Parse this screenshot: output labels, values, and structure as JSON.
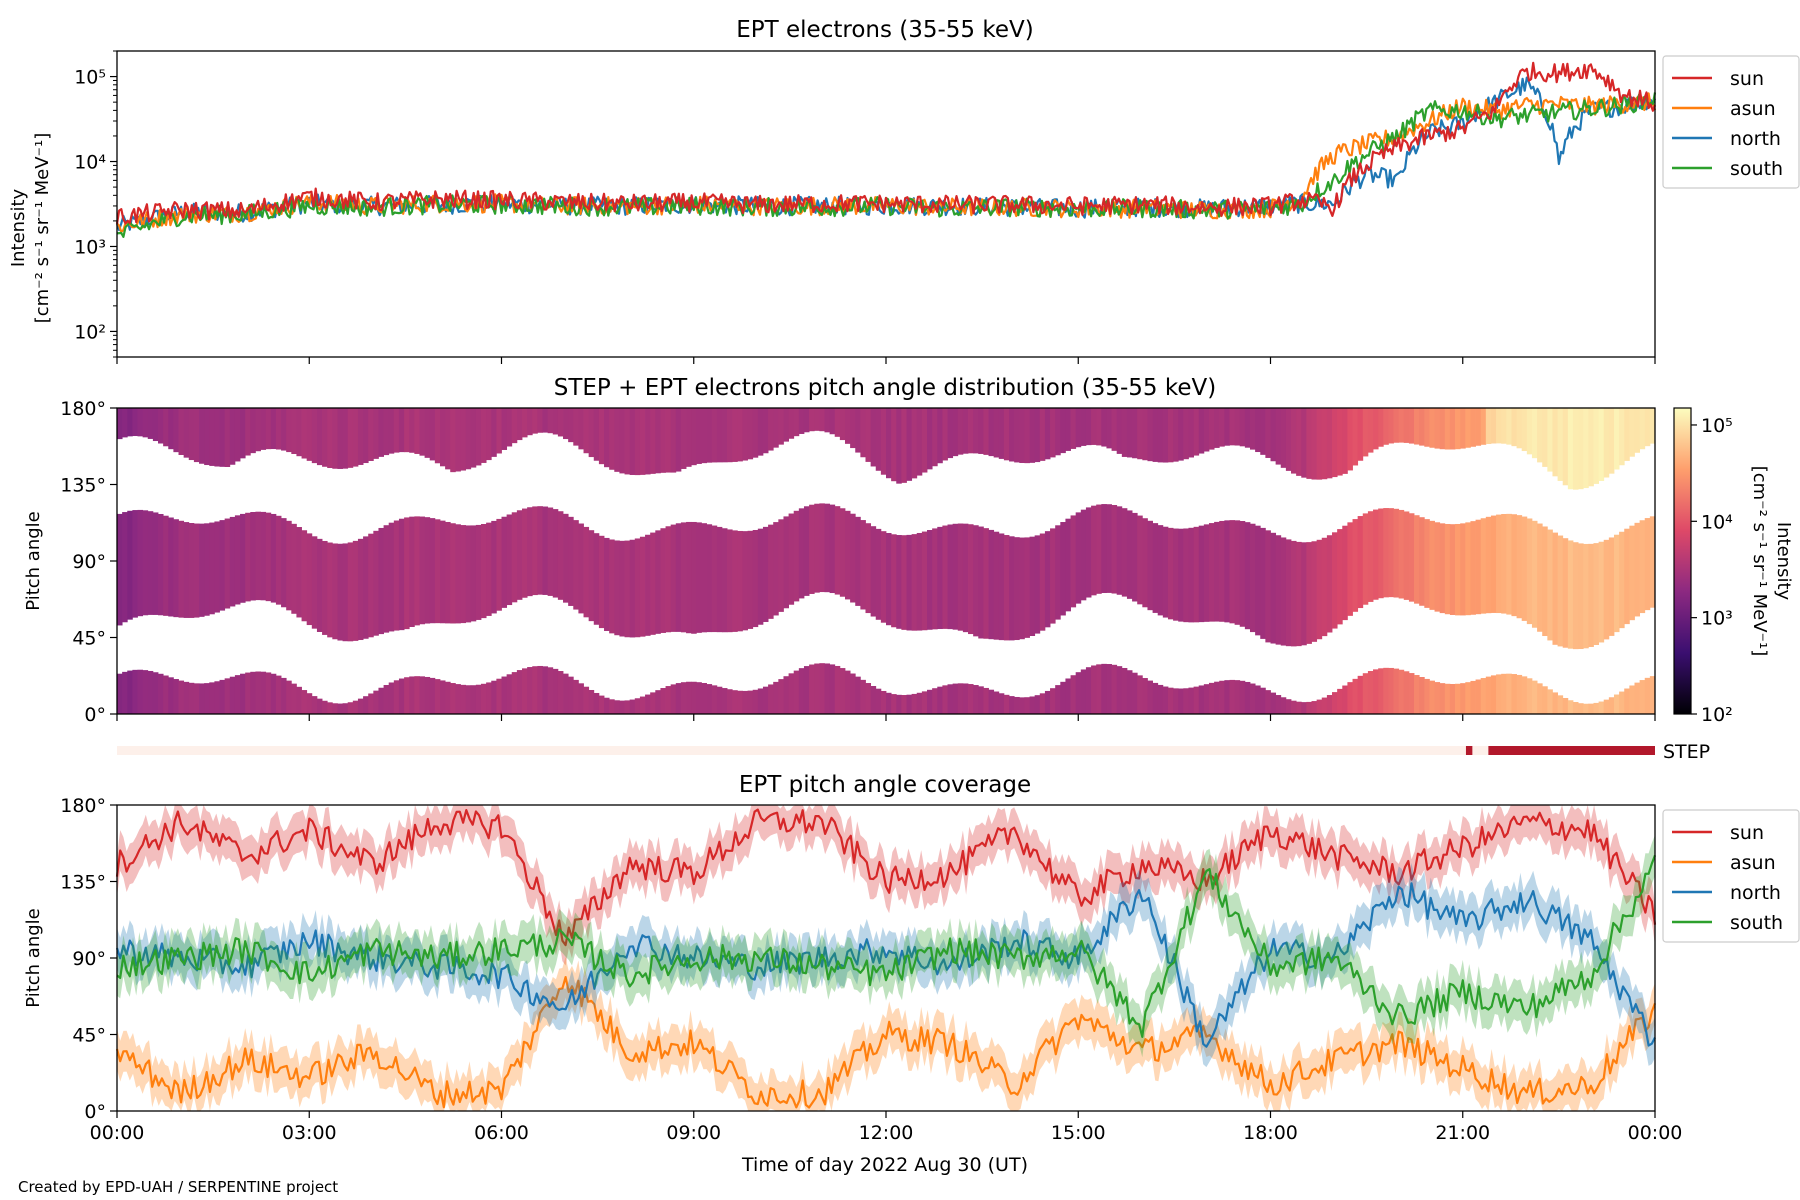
{
  "figure": {
    "credit": "Created by EPD-UAH / SERPENTINE project",
    "xlabel": "Time of day 2022 Aug 30 (UT)",
    "xticks": [
      "00:00",
      "03:00",
      "06:00",
      "09:00",
      "12:00",
      "15:00",
      "18:00",
      "21:00",
      "00:00"
    ]
  },
  "colors": {
    "sun": "#d62728",
    "asun": "#ff7f0e",
    "north": "#1f77b4",
    "south": "#2ca02c",
    "step_bar": "#b2182b",
    "step_bar_off": "#fdf0ea"
  },
  "chart_data": [
    {
      "type": "line",
      "title": "EPT electrons (35-55 keV)",
      "ylabel": "Intensity",
      "yunit": "[cm⁻² s⁻¹ sr⁻¹ MeV⁻¹]",
      "yscale": "log",
      "ylim": [
        50,
        200000
      ],
      "yticks": [
        "10²",
        "10³",
        "10⁴",
        "10⁵"
      ],
      "xlim_hours": [
        0,
        24
      ],
      "legend": "outside-right",
      "x_hours": [
        0,
        1,
        2,
        3,
        4,
        5,
        6,
        7,
        8,
        9,
        10,
        11,
        12,
        13,
        14,
        15,
        16,
        17,
        18,
        18.5,
        19,
        19.5,
        20,
        20.5,
        21,
        21.5,
        22,
        22.5,
        23,
        23.5,
        24
      ],
      "series": [
        {
          "name": "sun",
          "values": [
            2200,
            2700,
            2600,
            3800,
            3300,
            3600,
            3500,
            3300,
            3200,
            3300,
            3100,
            3200,
            3200,
            3100,
            3100,
            3000,
            3100,
            2900,
            3000,
            3500,
            2900,
            9000,
            15000,
            20000,
            24000,
            40000,
            115000,
            110000,
            125000,
            60000,
            48000
          ]
        },
        {
          "name": "asun",
          "values": [
            1700,
            2400,
            2500,
            3300,
            3000,
            3200,
            3200,
            3000,
            3000,
            3100,
            3000,
            3000,
            3000,
            2900,
            2900,
            2800,
            2800,
            2700,
            2800,
            3800,
            12000,
            16000,
            20000,
            30000,
            45000,
            40000,
            46000,
            47000,
            45000,
            48000,
            50000
          ]
        },
        {
          "name": "north",
          "values": [
            1700,
            2500,
            2500,
            3200,
            3000,
            3100,
            3200,
            3000,
            3000,
            3100,
            3000,
            3000,
            3000,
            3000,
            2900,
            2800,
            2900,
            2800,
            3000,
            3200,
            3200,
            7000,
            6000,
            22000,
            28000,
            50000,
            80000,
            10000,
            40000,
            45000,
            55000
          ]
        },
        {
          "name": "south",
          "values": [
            1300,
            2300,
            2400,
            3000,
            2900,
            3100,
            3100,
            3000,
            2900,
            3000,
            2900,
            2900,
            3000,
            2800,
            2900,
            2800,
            2800,
            2700,
            2800,
            3200,
            6000,
            12000,
            20000,
            40000,
            40000,
            32000,
            35000,
            38000,
            42000,
            46000,
            55000
          ]
        }
      ]
    },
    {
      "type": "heatmap",
      "title": "STEP + EPT electrons pitch angle distribution (35-55 keV)",
      "ylabel": "Pitch angle",
      "ylim_deg": [
        0,
        180
      ],
      "yticks": [
        "0°",
        "45°",
        "90°",
        "135°",
        "180°"
      ],
      "colorbar": {
        "label": "Intensity",
        "unit": "[cm⁻² s⁻¹ sr⁻¹ MeV⁻¹]",
        "scale": "log",
        "range": [
          100,
          150000
        ],
        "ticks": [
          "10²",
          "10³",
          "10⁴",
          "10⁵"
        ],
        "colors": [
          "#000004",
          "#3b0f70",
          "#8c2981",
          "#de4968",
          "#fe9f6d",
          "#fcfdbf"
        ]
      },
      "x_hours": [
        0,
        1,
        2,
        3,
        4,
        5,
        6,
        7,
        8,
        9,
        10,
        11,
        12,
        13,
        14,
        15,
        16,
        17,
        18,
        18.5,
        19,
        19.5,
        20,
        20.5,
        21,
        21.5,
        22,
        22.5,
        23,
        23.5,
        24
      ],
      "intensity": [
        1500,
        2500,
        2500,
        3200,
        3000,
        3200,
        3200,
        3000,
        3000,
        3100,
        3000,
        3000,
        3000,
        2900,
        2900,
        2800,
        2900,
        2800,
        2900,
        3500,
        6000,
        10000,
        15000,
        25000,
        30000,
        40000,
        50000,
        50000,
        55000,
        50000,
        50000
      ]
    },
    {
      "type": "bar",
      "label": "STEP",
      "segments_hours": [
        [
          21.05,
          21.15
        ],
        [
          21.4,
          24.0
        ]
      ]
    },
    {
      "type": "line",
      "title": "EPT pitch angle coverage",
      "ylabel": "Pitch angle",
      "ylim_deg": [
        0,
        180
      ],
      "yticks": [
        "0°",
        "45°",
        "90°",
        "135°",
        "180°"
      ],
      "band_width_deg": 12,
      "legend": "outside-right",
      "x_hours": [
        0,
        1,
        2,
        3,
        4,
        5,
        6,
        7,
        8,
        9,
        10,
        11,
        12,
        13,
        14,
        15,
        16,
        17,
        18,
        19,
        20,
        21,
        22,
        23,
        24
      ],
      "series": [
        {
          "name": "sun",
          "values": [
            145,
            170,
            150,
            165,
            145,
            170,
            168,
            100,
            145,
            140,
            170,
            170,
            135,
            140,
            165,
            125,
            145,
            135,
            165,
            150,
            140,
            155,
            170,
            165,
            115
          ]
        },
        {
          "name": "asun",
          "values": [
            35,
            10,
            30,
            20,
            35,
            10,
            12,
            80,
            35,
            40,
            10,
            10,
            45,
            40,
            15,
            55,
            35,
            45,
            15,
            30,
            40,
            25,
            10,
            15,
            60
          ]
        },
        {
          "name": "north",
          "values": [
            95,
            90,
            85,
            100,
            90,
            85,
            80,
            60,
            100,
            90,
            85,
            90,
            95,
            85,
            100,
            90,
            130,
            40,
            95,
            90,
            130,
            110,
            125,
            100,
            40
          ]
        },
        {
          "name": "south",
          "values": [
            85,
            90,
            95,
            80,
            95,
            90,
            95,
            100,
            80,
            90,
            90,
            85,
            80,
            95,
            90,
            95,
            50,
            140,
            85,
            90,
            55,
            70,
            60,
            80,
            145
          ]
        }
      ]
    }
  ]
}
